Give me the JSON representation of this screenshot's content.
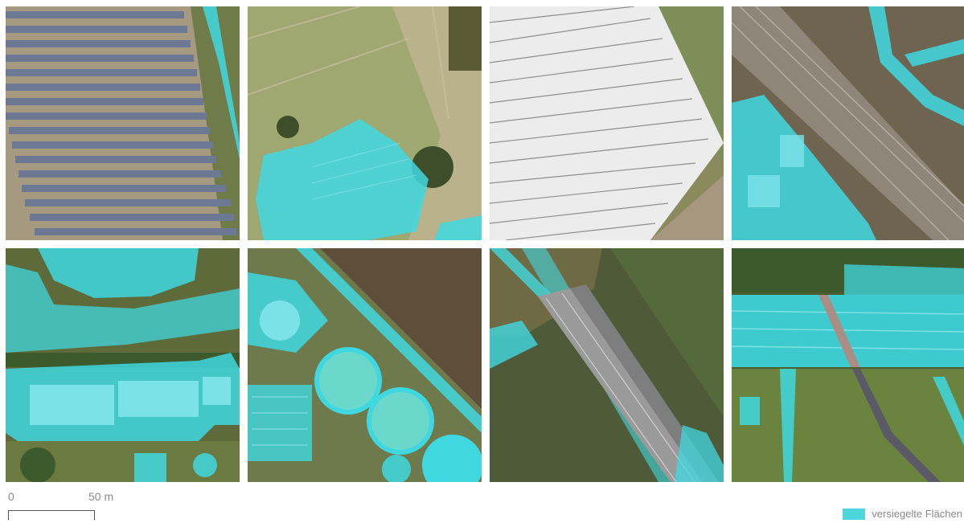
{
  "scale": {
    "min_label": "0",
    "max_label": "50 m"
  },
  "legend": {
    "label": "versiegelte Flächen",
    "color": "#4fd6dc"
  },
  "colors": {
    "sealed_overlay": "#40d8e0",
    "grass": "#8a9a60",
    "field": "#b0a878",
    "forest": "#5a5436",
    "water": "#4e5a3a",
    "solar_panel": "#6a7890",
    "tree": "#3c5a2c"
  },
  "tiles": [
    {
      "id": "solar-park"
    },
    {
      "id": "greenhouse-field"
    },
    {
      "id": "plastic-covered-field"
    },
    {
      "id": "railway-commercial"
    },
    {
      "id": "swimming-pool"
    },
    {
      "id": "sewage-plant"
    },
    {
      "id": "river-bridge"
    },
    {
      "id": "highway"
    }
  ]
}
